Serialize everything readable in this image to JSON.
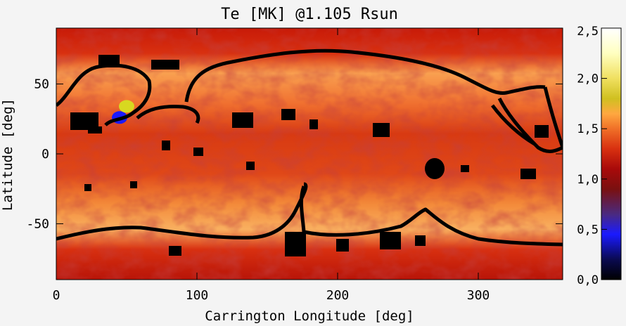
{
  "chart_data": {
    "type": "heatmap",
    "title": "Te [MK] @1.105 Rsun",
    "xlabel": "Carrington Longitude [deg]",
    "ylabel": "Latitude [deg]",
    "xlim": [
      0,
      360
    ],
    "ylim": [
      -90,
      90
    ],
    "x_ticks": [
      0,
      100,
      200,
      300
    ],
    "y_ticks": [
      50,
      0,
      -50
    ],
    "colorbar": {
      "range": [
        0.0,
        2.5
      ],
      "ticks": [
        "0,0",
        "0,5",
        "1,0",
        "1,5",
        "2,0",
        "2,5"
      ],
      "colormap": [
        "#000000",
        "#1a1aff",
        "#5a2a6a",
        "#8b0000",
        "#d42a0a",
        "#f0601a",
        "#ffb040",
        "#d8d820",
        "#ffffcc",
        "#ffffff"
      ]
    },
    "features": [
      {
        "name": "blue-low-region",
        "lon": 45,
        "lat": 26,
        "value": 0.3
      },
      {
        "name": "yellow-high-region",
        "lon": 50,
        "lat": 34,
        "value": 1.9
      }
    ],
    "bands": [
      {
        "lat_range": [
          60,
          90
        ],
        "value": 1.0
      },
      {
        "lat_range": [
          30,
          60
        ],
        "value": 1.45
      },
      {
        "lat_range": [
          -30,
          30
        ],
        "value": 1.15
      },
      {
        "lat_range": [
          -60,
          -30
        ],
        "value": 1.45
      },
      {
        "lat_range": [
          -90,
          -60
        ],
        "value": 1.0
      }
    ]
  }
}
